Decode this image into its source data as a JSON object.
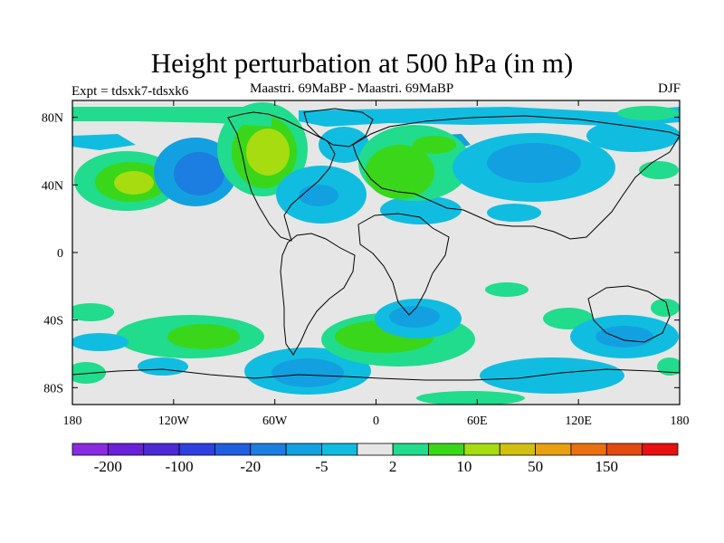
{
  "title": "Height perturbation at 500 hPa (in m)",
  "left_label": "Expt = tdsxk7-tdsxk6",
  "center_label": "Maastri.  69MaBP - Maastri.  69MaBP",
  "right_label": "DJF",
  "map": {
    "projection": "cylindrical-equidistant",
    "lon_range": [
      -180,
      180
    ],
    "lat_range": [
      -90,
      90
    ],
    "lat_ticks": [
      {
        "value": 80,
        "label": "80N"
      },
      {
        "value": 40,
        "label": "40N"
      },
      {
        "value": 0,
        "label": "0"
      },
      {
        "value": -40,
        "label": "40S"
      },
      {
        "value": -80,
        "label": "80S"
      }
    ],
    "lon_ticks": [
      {
        "value": -180,
        "label": "180"
      },
      {
        "value": -120,
        "label": "120W"
      },
      {
        "value": -60,
        "label": "60W"
      },
      {
        "value": 0,
        "label": "0"
      },
      {
        "value": 60,
        "label": "60E"
      },
      {
        "value": 120,
        "label": "120E"
      },
      {
        "value": 180,
        "label": "180"
      }
    ],
    "background_color": "#e6e6e6"
  },
  "colorbar": {
    "colors": [
      "#8a2be2",
      "#6a1fd8",
      "#4b2ad6",
      "#2f3fe0",
      "#1f5fe0",
      "#1b7ee0",
      "#13a0e0",
      "#10bde0",
      "#e6e6e6",
      "#20dc8c",
      "#3ad61a",
      "#a6dc10",
      "#d2c010",
      "#e8a010",
      "#e87010",
      "#e44a10",
      "#e81010"
    ],
    "labels": [
      "-200",
      "-100",
      "-20",
      "-5",
      "2",
      "10",
      "50",
      "150"
    ]
  }
}
